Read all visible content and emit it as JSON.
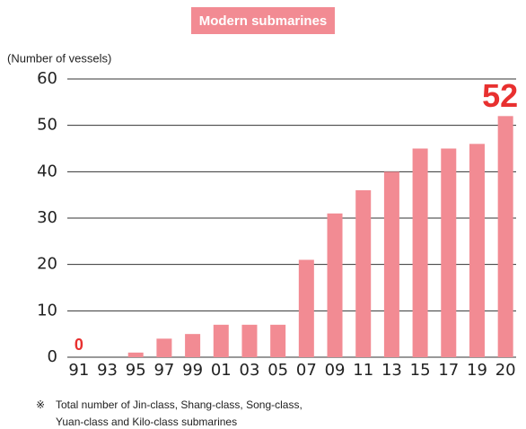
{
  "chart_data": {
    "type": "bar",
    "title": "Modern submarines",
    "y_label": "(Number of vessels)",
    "categories": [
      "91",
      "93",
      "95",
      "97",
      "99",
      "01",
      "03",
      "05",
      "07",
      "09",
      "11",
      "13",
      "15",
      "17",
      "19",
      "20"
    ],
    "values": [
      0,
      0,
      1,
      4,
      5,
      7,
      7,
      7,
      21,
      31,
      36,
      40,
      45,
      45,
      46,
      52
    ],
    "value_labels": [
      "0",
      null,
      null,
      null,
      null,
      null,
      null,
      null,
      null,
      null,
      null,
      null,
      null,
      null,
      null,
      "52"
    ],
    "color": "#f28b93",
    "label_color": "#e8302f",
    "ylim": [
      0,
      60
    ],
    "yticks": [
      0,
      10,
      20,
      30,
      40,
      50,
      60
    ],
    "grid": true,
    "note": {
      "marker": "※",
      "lines": [
        "Total number of Jin-class, Shang-class, Song-class,",
        "Yuan-class and Kilo-class submarines"
      ]
    }
  }
}
